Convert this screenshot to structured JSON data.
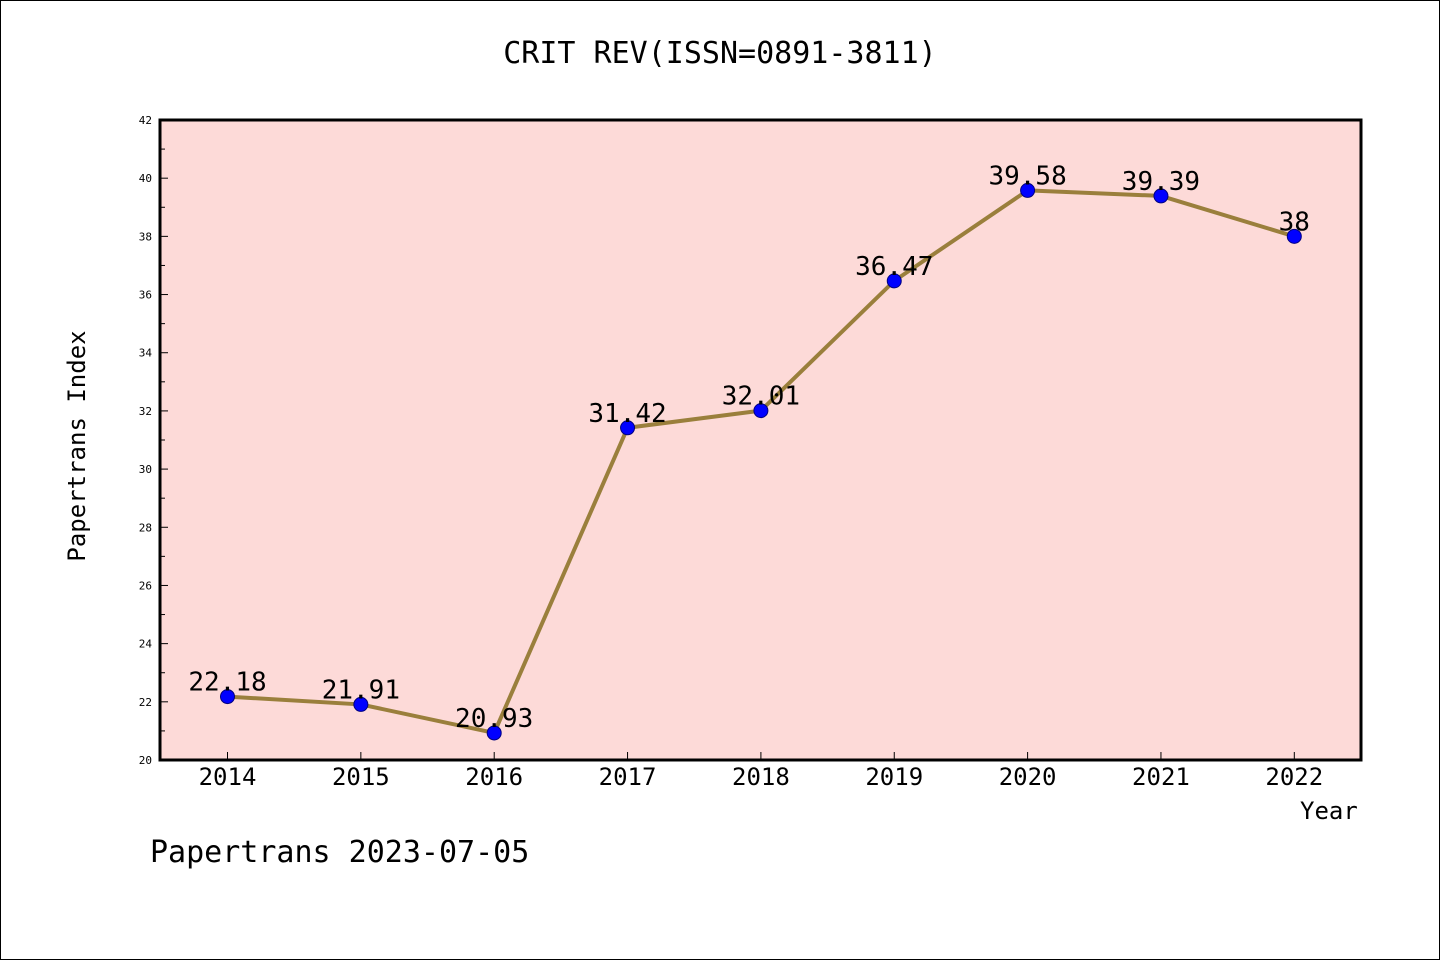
{
  "chart_data": {
    "type": "line",
    "title": "CRIT REV(ISSN=0891-3811)",
    "xlabel": "Year",
    "ylabel": "Papertrans Index",
    "categories": [
      "2014",
      "2015",
      "2016",
      "2017",
      "2018",
      "2019",
      "2020",
      "2021",
      "2022"
    ],
    "series": [
      {
        "values": [
          22.18,
          21.91,
          20.93,
          31.42,
          32.01,
          36.47,
          39.58,
          39.39,
          38
        ],
        "labels": [
          "22.18",
          "21.91",
          "20.93",
          "31.42",
          "32.01",
          "36.47",
          "39.58",
          "39.39",
          "38"
        ]
      }
    ],
    "ylim": [
      20,
      42
    ],
    "yticks": [
      "20",
      "22",
      "24",
      "26",
      "28",
      "30",
      "32",
      "34",
      "36",
      "38",
      "40",
      "42"
    ],
    "grid": false,
    "legend": "none",
    "colors": {
      "plot_background": "#FDDAD8",
      "line": "#9A7F3C",
      "marker": "#0000FF",
      "marker_edge": "#000080"
    }
  },
  "footer": "Papertrans 2023-07-05"
}
